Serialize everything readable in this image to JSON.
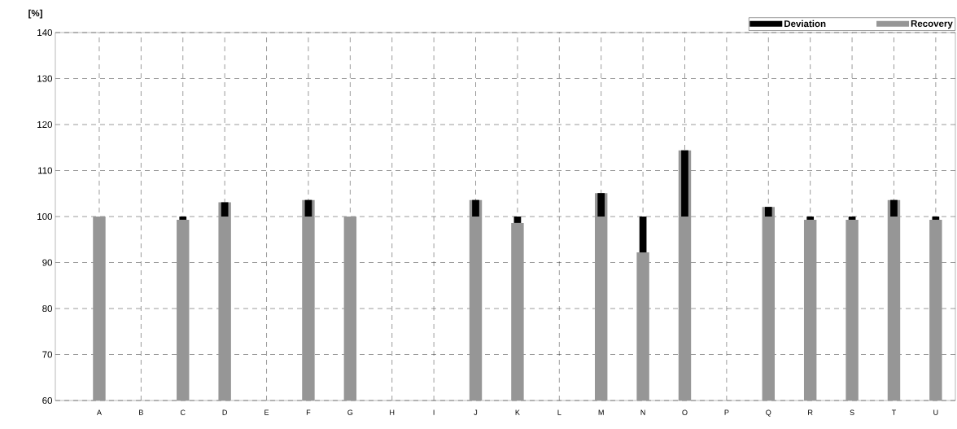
{
  "chart_data": {
    "type": "bar",
    "ylabel": "[%]",
    "categories": [
      "A",
      "B",
      "C",
      "D",
      "E",
      "F",
      "G",
      "H",
      "I",
      "J",
      "K",
      "L",
      "M",
      "N",
      "O",
      "P",
      "Q",
      "R",
      "S",
      "T",
      "U"
    ],
    "series": [
      {
        "name": "Deviation",
        "color": "#000000",
        "base": [
          null,
          null,
          100,
          100,
          null,
          100,
          null,
          null,
          null,
          100,
          100,
          null,
          100,
          100,
          100,
          null,
          100,
          100,
          100,
          100,
          100
        ],
        "values": [
          null,
          null,
          -0.7,
          3.1,
          null,
          3.6,
          null,
          null,
          null,
          3.6,
          -1.4,
          null,
          5.1,
          -7.8,
          14.4,
          null,
          2.1,
          -0.7,
          -0.7,
          3.6,
          -0.7
        ]
      },
      {
        "name": "Recovery",
        "color": "#969696",
        "values": [
          100,
          null,
          99.3,
          103.1,
          null,
          103.6,
          100,
          null,
          null,
          103.6,
          98.6,
          null,
          105.1,
          92.2,
          114.4,
          null,
          102.1,
          99.3,
          99.3,
          103.6,
          99.3
        ]
      }
    ],
    "ylim": [
      60,
      140
    ],
    "yticks": [
      60,
      70,
      80,
      90,
      100,
      110,
      120,
      130,
      140
    ],
    "grid": true,
    "legend": "top right"
  }
}
